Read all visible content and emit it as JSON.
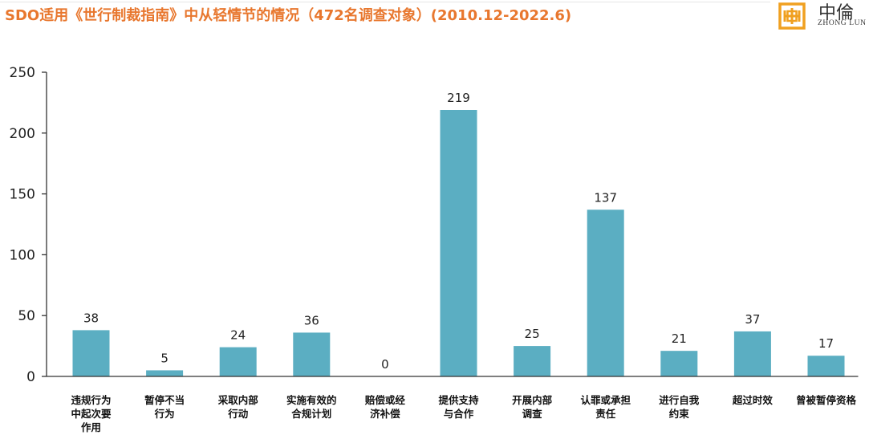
{
  "header": {
    "title": "SDO适用《世行制裁指南》中从轻情节的情况（472名调查对象）(2010.12-2022.6)"
  },
  "logo": {
    "chinese": "中倫",
    "english": "ZHONG LUN",
    "icon": "zhonglun-logo-mark",
    "color": "#F0A020"
  },
  "chart_data": {
    "type": "bar",
    "title": "SDO适用《世行制裁指南》中从轻情节的情况（472名调查对象）(2010.12-2022.6)",
    "xlabel": "",
    "ylabel": "",
    "ylim": [
      0,
      250
    ],
    "yticks": [
      0,
      50,
      100,
      150,
      200,
      250
    ],
    "grid": false,
    "legend": "none",
    "bar_color": "#5BAEC2",
    "title_color": "#E8772E",
    "categories": [
      [
        "违规行为",
        "中起次要",
        "作用"
      ],
      [
        "暂停不当",
        "行为"
      ],
      [
        "采取内部",
        "行动"
      ],
      [
        "实施有效的",
        "合规计划"
      ],
      [
        "赔偿或经",
        "济补偿"
      ],
      [
        "提供支持",
        "与合作"
      ],
      [
        "开展内部",
        "调查"
      ],
      [
        "认罪或承担",
        "责任"
      ],
      [
        "进行自我",
        "约束"
      ],
      [
        "超过时效"
      ],
      [
        "曾被暂停资格"
      ]
    ],
    "values": [
      38,
      5,
      24,
      36,
      0,
      219,
      25,
      137,
      21,
      37,
      17
    ]
  }
}
